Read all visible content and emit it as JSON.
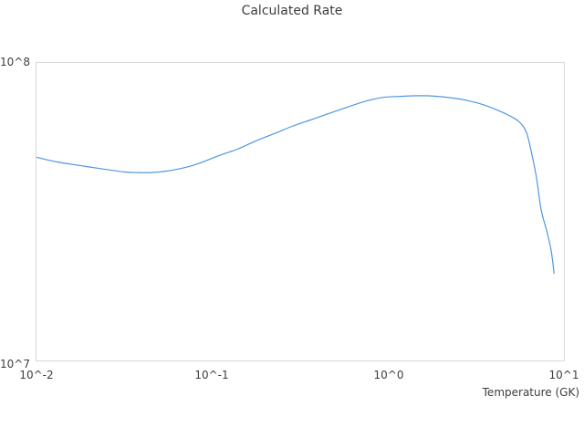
{
  "colors": {
    "text": "#3d3d3d",
    "axis_border": "#d9d9d9",
    "background": "#ffffff",
    "line": "#4f96e0"
  },
  "chart_data": {
    "type": "line",
    "title": "Calculated Rate",
    "xlabel": "Temperature (GK)",
    "ylabel": "",
    "x_scale": "log",
    "y_scale": "log",
    "xlim": [
      0.01,
      10
    ],
    "ylim": [
      10000000.0,
      100000000.0
    ],
    "grid": false,
    "legend": "none",
    "x_tick_labels": [
      "10^-2",
      "10^-1",
      "10^0",
      "10^1"
    ],
    "y_tick_labels": [
      "10^7",
      "10^8"
    ],
    "line_color": "#4f96e0",
    "series": [
      {
        "name": "calculated rate",
        "x": [
          0.01,
          0.013,
          0.016,
          0.02,
          0.026,
          0.032,
          0.038,
          0.045,
          0.055,
          0.07,
          0.086,
          0.11,
          0.139,
          0.177,
          0.224,
          0.284,
          0.361,
          0.457,
          0.581,
          0.736,
          0.935,
          1.19,
          1.51,
          1.91,
          2.43,
          2.9,
          3.47,
          4.14,
          4.83,
          5.57,
          6.13,
          6.59,
          6.99,
          7.42,
          7.98,
          8.46,
          8.79
        ],
        "y": [
          48200000.0,
          46500000.0,
          45600000.0,
          44700000.0,
          43700000.0,
          43000000.0,
          42800000.0,
          42800000.0,
          43300000.0,
          44500000.0,
          46200000.0,
          48900000.0,
          51300000.0,
          54700000.0,
          57800000.0,
          61200000.0,
          64300000.0,
          67500000.0,
          70900000.0,
          74200000.0,
          76600000.0,
          77200000.0,
          77600000.0,
          77200000.0,
          76000000.0,
          74500000.0,
          72400000.0,
          69600000.0,
          66800000.0,
          63400000.0,
          58200000.0,
          48900000.0,
          41000000.0,
          32100000.0,
          27300000.0,
          23400000.0,
          19600000.0
        ]
      }
    ]
  }
}
